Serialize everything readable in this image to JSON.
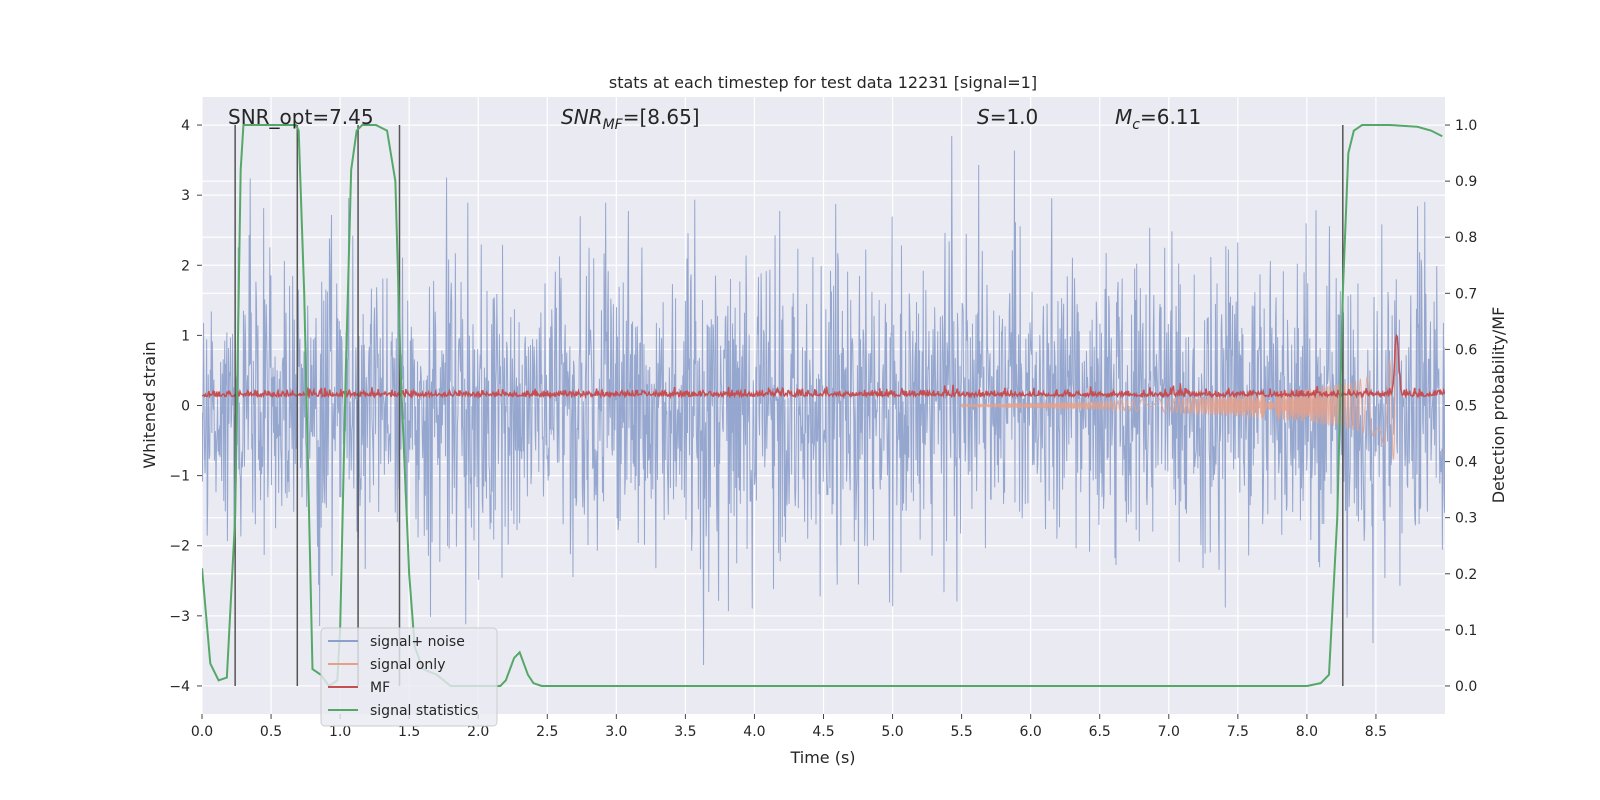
{
  "chart_data": {
    "type": "line",
    "title": "stats at each timestep for test data 12231 [signal=1]",
    "xlabel": "Time (s)",
    "ylabel": "Whitened strain",
    "ylabel_right": "Detection probability/MF",
    "xlim": [
      0.0,
      9.0
    ],
    "ylim": [
      -4.4,
      4.4
    ],
    "ylim_right": [
      -0.05,
      1.05
    ],
    "xticks": [
      "0.0",
      "0.5",
      "1.0",
      "1.5",
      "2.0",
      "2.5",
      "3.0",
      "3.5",
      "4.0",
      "4.5",
      "5.0",
      "5.5",
      "6.0",
      "6.5",
      "7.0",
      "7.5",
      "8.0",
      "8.5"
    ],
    "yticks": [
      "4",
      "3",
      "2",
      "1",
      "0",
      "−1",
      "−2",
      "−3",
      "−4"
    ],
    "yticks_right": [
      "1.0",
      "0.9",
      "0.8",
      "0.7",
      "0.6",
      "0.5",
      "0.4",
      "0.3",
      "0.2",
      "0.1",
      "0.0"
    ],
    "annotations": {
      "snr_opt": "SNR_opt=7.45",
      "snr_mf_sym": "SNR",
      "snr_mf_sub": "MF",
      "snr_mf_val": "=[8.65]",
      "s_sym": "S",
      "s_val": "=1.0",
      "mc_sym": "M",
      "mc_sub": "c",
      "mc_val": "=6.11"
    },
    "legend": {
      "location": "lower-left",
      "entries": [
        "signal+ noise",
        "signal only",
        "MF",
        "signal statistics"
      ]
    },
    "colors": {
      "noise": "#8da0cb",
      "signal": "#e5a08a",
      "mf": "#c44e52",
      "stat": "#55a868",
      "vline": "#555555",
      "plot_bg": "#eaeaf2"
    },
    "series": [
      {
        "name": "signal+ noise",
        "axis": "left",
        "description_values": "dense Gaussian whitened strain, amplitude mostly within [-2.5, 2.5], peaks up to ~4"
      },
      {
        "name": "signal only",
        "axis": "left",
        "envelope": {
          "x": [
            5.5,
            6.5,
            7.0,
            7.5,
            8.0,
            8.3,
            8.5,
            8.6,
            8.65
          ],
          "amp": [
            0.02,
            0.06,
            0.1,
            0.16,
            0.24,
            0.33,
            0.45,
            0.65,
            0.9
          ]
        }
      },
      {
        "name": "MF",
        "axis": "left",
        "baseline": 0.15,
        "peak": {
          "x": 8.65,
          "y": 1.0
        }
      },
      {
        "name": "signal statistics",
        "axis": "right",
        "x": [
          0.0,
          0.06,
          0.12,
          0.18,
          0.24,
          0.28,
          0.3,
          0.34,
          0.4,
          0.5,
          0.6,
          0.68,
          0.7,
          0.74,
          0.8,
          0.86,
          0.92,
          0.98,
          1.0,
          1.04,
          1.08,
          1.12,
          1.16,
          1.2,
          1.26,
          1.34,
          1.4,
          1.44,
          1.5,
          1.54,
          1.6,
          1.7,
          1.8,
          1.9,
          2.0,
          2.1,
          2.16,
          2.2,
          2.26,
          2.3,
          2.36,
          2.4,
          2.46,
          2.5,
          2.6,
          3.0,
          4.0,
          5.0,
          6.0,
          7.0,
          8.0,
          8.1,
          8.16,
          8.22,
          8.26,
          8.3,
          8.34,
          8.4,
          8.5,
          8.6,
          8.8,
          8.9,
          8.98
        ],
        "values": [
          0.21,
          0.04,
          0.01,
          0.015,
          0.3,
          0.92,
          1.0,
          1.0,
          1.0,
          1.0,
          1.0,
          1.0,
          0.99,
          0.7,
          0.03,
          0.02,
          0.0,
          0.01,
          0.1,
          0.55,
          0.92,
          0.99,
          1.0,
          1.0,
          1.0,
          0.99,
          0.9,
          0.55,
          0.2,
          0.07,
          0.03,
          0.02,
          0.0,
          0.0,
          0.0,
          0.0,
          0.0,
          0.01,
          0.05,
          0.06,
          0.02,
          0.005,
          0.0,
          0.0,
          0.0,
          0.0,
          0.0,
          0.0,
          0.0,
          0.0,
          0.0,
          0.005,
          0.02,
          0.3,
          0.7,
          0.95,
          0.99,
          1.0,
          1.0,
          1.0,
          0.997,
          0.99,
          0.98
        ]
      }
    ],
    "vlines": [
      0.24,
      0.69,
      1.13,
      1.43,
      8.26
    ]
  }
}
